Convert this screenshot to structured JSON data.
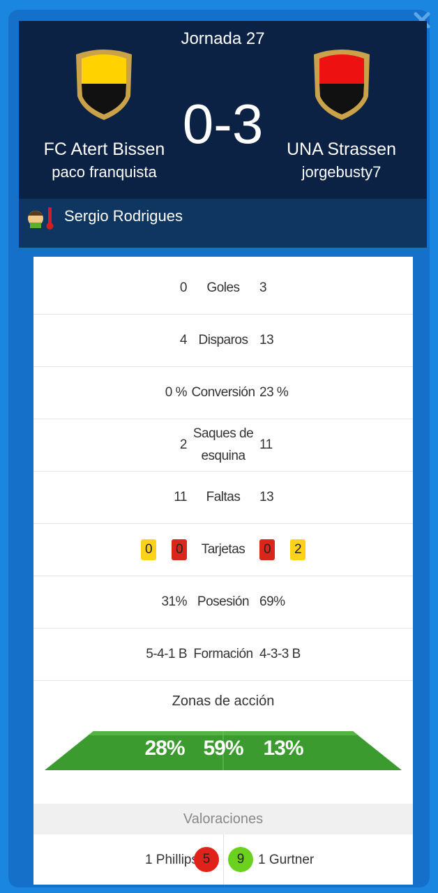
{
  "header": {
    "round": "Jornada  27",
    "home_team": "FC Atert Bissen",
    "home_manager": "paco franquista",
    "score": "0-3",
    "away_team": "UNA Strassen",
    "away_manager": "jorgebusty7"
  },
  "referee": "Sergio Rodrigues",
  "stats": [
    {
      "home": "0",
      "label": "Goles",
      "away": "3"
    },
    {
      "home": "4",
      "label": "Disparos",
      "away": "13"
    },
    {
      "home": "0 %",
      "label": "Conversión",
      "away": "23 %"
    },
    {
      "home": "2",
      "label": "Saques de esquina",
      "away": "11"
    },
    {
      "home": "11",
      "label": "Faltas",
      "away": "13"
    },
    {
      "home_yellow": "0",
      "home_red": "0",
      "label": "Tarjetas",
      "away_red": "0",
      "away_yellow": "2"
    },
    {
      "home": "31%",
      "label": "Posesión",
      "away": "69%"
    },
    {
      "home": "5-4-1 B",
      "label": "Formación",
      "away": "4-3-3 B"
    }
  ],
  "zones": {
    "title": "Zonas de acción",
    "values": [
      "28%",
      "59%",
      "13%"
    ]
  },
  "ratings": {
    "title": "Valoraciones",
    "home_player": "1 Phillips",
    "home_rating": "5",
    "away_rating": "9",
    "away_player": "1 Gurtner"
  }
}
